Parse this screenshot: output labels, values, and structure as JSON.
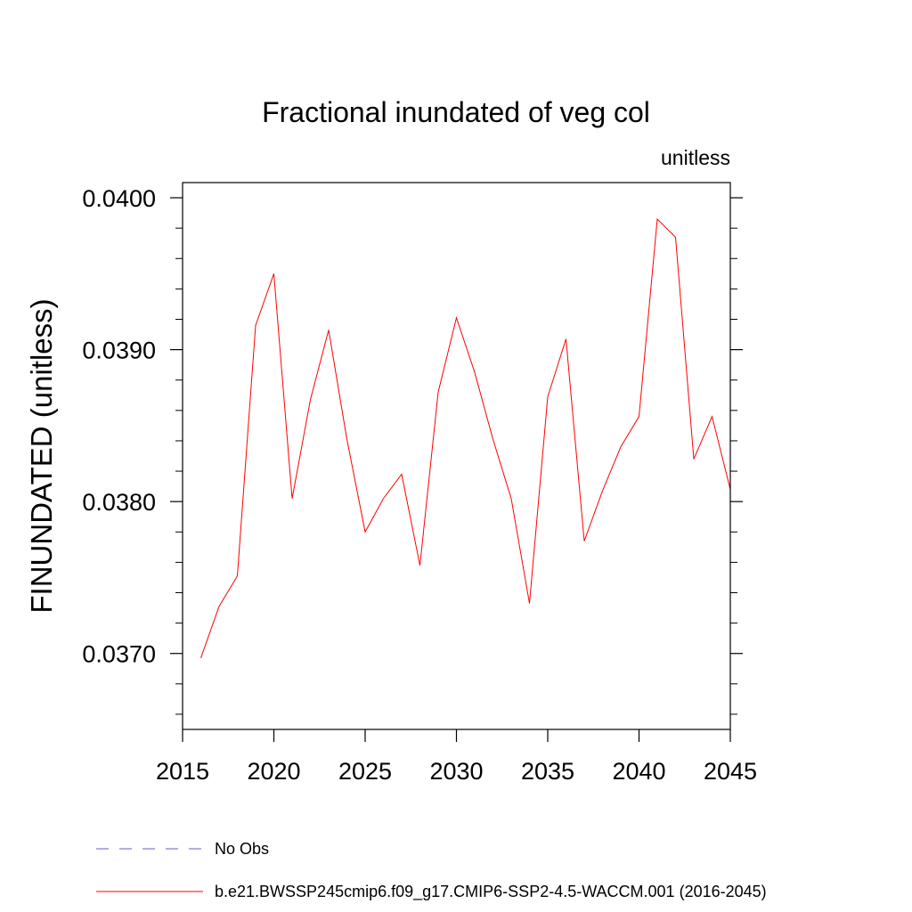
{
  "chart_data": {
    "type": "line",
    "title": "Fractional inundated of veg col",
    "units_label": "unitless",
    "ylabel": "FINUNDATED  (unitless)",
    "xlabel": "",
    "xlim": [
      2015,
      2045
    ],
    "ylim": [
      0.0365,
      0.0401
    ],
    "xticks": [
      2015,
      2020,
      2025,
      2030,
      2035,
      2040,
      2045
    ],
    "yticks": [
      0.037,
      0.038,
      0.039,
      0.04
    ],
    "xtick_labels": [
      "2015",
      "2020",
      "2025",
      "2030",
      "2035",
      "2040",
      "2045"
    ],
    "ytick_labels": [
      "0.0370",
      "0.0380",
      "0.0390",
      "0.0400"
    ],
    "grid": false,
    "legend_position": "bottom",
    "legend": [
      {
        "label": "No Obs",
        "color": "#6a5acd",
        "style": "dashed"
      },
      {
        "label": "b.e21.BWSSP245cmip6.f09_g17.CMIP6-SSP2-4.5-WACCM.001 (2016-2045)",
        "color": "#ff0000",
        "style": "solid"
      }
    ],
    "series": [
      {
        "name": "b.e21.BWSSP245cmip6.f09_g17.CMIP6-SSP2-4.5-WACCM.001 (2016-2045)",
        "color": "#ff0000",
        "x": [
          2016,
          2017,
          2018,
          2019,
          2020,
          2021,
          2022,
          2023,
          2024,
          2025,
          2026,
          2027,
          2028,
          2029,
          2030,
          2031,
          2032,
          2033,
          2034,
          2035,
          2036,
          2037,
          2038,
          2039,
          2040,
          2041,
          2042,
          2043,
          2044,
          2045
        ],
        "y": [
          0.03697,
          0.03731,
          0.03751,
          0.03916,
          0.0395,
          0.03802,
          0.03867,
          0.03913,
          0.03841,
          0.0378,
          0.03802,
          0.03818,
          0.03758,
          0.03872,
          0.03921,
          0.03885,
          0.03841,
          0.03802,
          0.03733,
          0.03869,
          0.03907,
          0.03774,
          0.03807,
          0.03836,
          0.03856,
          0.03986,
          0.03974,
          0.03828,
          0.03856,
          0.03808
        ]
      }
    ]
  }
}
